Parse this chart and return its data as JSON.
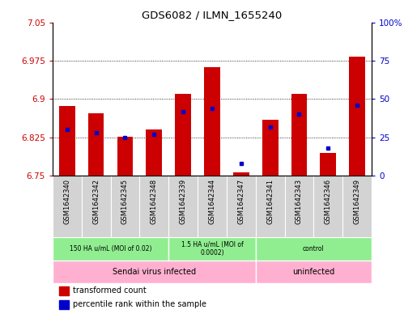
{
  "title": "GDS6082 / ILMN_1655240",
  "samples": [
    "GSM1642340",
    "GSM1642342",
    "GSM1642345",
    "GSM1642348",
    "GSM1642339",
    "GSM1642344",
    "GSM1642347",
    "GSM1642341",
    "GSM1642343",
    "GSM1642346",
    "GSM1642349"
  ],
  "transformed_count": [
    6.887,
    6.872,
    6.827,
    6.84,
    6.91,
    6.963,
    6.757,
    6.86,
    6.91,
    6.795,
    6.983
  ],
  "percentile_rank": [
    30,
    28,
    25,
    27,
    42,
    44,
    8,
    32,
    40,
    18,
    46
  ],
  "ylim_left": [
    6.75,
    7.05
  ],
  "ylim_right": [
    0,
    100
  ],
  "yticks_left": [
    6.75,
    6.825,
    6.9,
    6.975,
    7.05
  ],
  "yticks_right": [
    0,
    25,
    50,
    75,
    100
  ],
  "bar_color": "#cc0000",
  "blue_color": "#0000cc",
  "grey_bg": "#d3d3d3",
  "dose_color": "#90ee90",
  "infection_color": "#ffb0d0",
  "dose_groups": [
    {
      "label": "150 HA u/mL (MOI of 0.02)",
      "start": 0,
      "end": 4
    },
    {
      "label": "1.5 HA u/mL (MOI of\n0.0002)",
      "start": 4,
      "end": 7
    },
    {
      "label": "control",
      "start": 7,
      "end": 11
    }
  ],
  "infection_groups": [
    {
      "label": "Sendai virus infected",
      "start": 0,
      "end": 7
    },
    {
      "label": "uninfected",
      "start": 7,
      "end": 11
    }
  ]
}
